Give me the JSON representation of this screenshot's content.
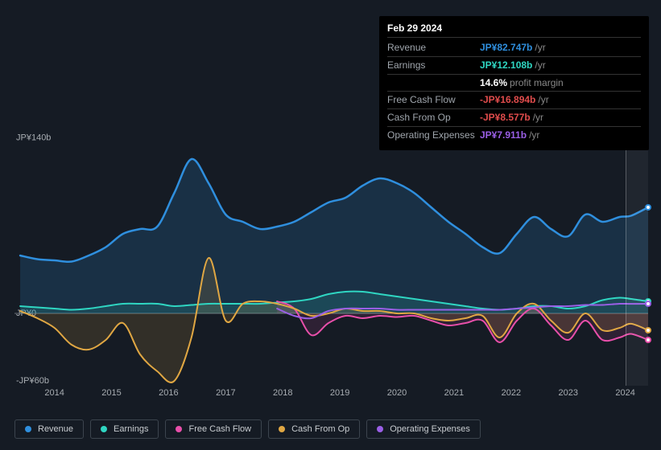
{
  "colors": {
    "revenue": "#2f8fde",
    "earnings": "#2fd6c2",
    "fcf": "#e84faa",
    "cashop": "#e0a743",
    "opex": "#9a5fe6",
    "negative": "#e04c4c",
    "bg": "#151b24",
    "grid": "#3a4149",
    "zero": "#6a7179"
  },
  "tooltip": {
    "date": "Feb 29 2024",
    "rows": [
      {
        "label": "Revenue",
        "value": "JP¥82.747b",
        "color": "#2f8fde",
        "suffix": "/yr"
      },
      {
        "label": "Earnings",
        "value": "JP¥12.108b",
        "color": "#2fd6c2",
        "suffix": "/yr"
      },
      {
        "label": "",
        "value": "14.6%",
        "color": "#ffffff",
        "suffix": "profit margin"
      },
      {
        "label": "Free Cash Flow",
        "value": "-JP¥16.894b",
        "color": "#e04c4c",
        "suffix": "/yr"
      },
      {
        "label": "Cash From Op",
        "value": "-JP¥8.577b",
        "color": "#e04c4c",
        "suffix": "/yr"
      },
      {
        "label": "Operating Expenses",
        "value": "JP¥7.911b",
        "color": "#9a5fe6",
        "suffix": "/yr"
      }
    ]
  },
  "chart": {
    "x_range": [
      2013.3,
      2024.4
    ],
    "y_range": [
      -60,
      140
    ],
    "y_ticks": [
      {
        "v": 140,
        "label": "JP¥140b"
      },
      {
        "v": 0,
        "label": "JP¥0"
      },
      {
        "v": -60,
        "label": "-JP¥60b"
      }
    ],
    "x_ticks": [
      2014,
      2015,
      2016,
      2017,
      2018,
      2019,
      2020,
      2021,
      2022,
      2023,
      2024
    ],
    "cursor_x": 2024.0,
    "series": [
      {
        "name": "Revenue",
        "color": "#2f8fde",
        "fill": "rgba(47,143,222,0.18)",
        "width": 2.5,
        "data": [
          [
            2013.4,
            48
          ],
          [
            2013.7,
            45
          ],
          [
            2014.0,
            44
          ],
          [
            2014.3,
            43
          ],
          [
            2014.6,
            48
          ],
          [
            2014.9,
            55
          ],
          [
            2015.2,
            66
          ],
          [
            2015.5,
            70
          ],
          [
            2015.8,
            72
          ],
          [
            2016.1,
            100
          ],
          [
            2016.4,
            128
          ],
          [
            2016.7,
            108
          ],
          [
            2017.0,
            82
          ],
          [
            2017.3,
            76
          ],
          [
            2017.6,
            70
          ],
          [
            2017.9,
            72
          ],
          [
            2018.2,
            76
          ],
          [
            2018.5,
            84
          ],
          [
            2018.8,
            92
          ],
          [
            2019.1,
            96
          ],
          [
            2019.4,
            106
          ],
          [
            2019.7,
            112
          ],
          [
            2020.0,
            108
          ],
          [
            2020.3,
            100
          ],
          [
            2020.6,
            88
          ],
          [
            2020.9,
            76
          ],
          [
            2021.2,
            66
          ],
          [
            2021.5,
            55
          ],
          [
            2021.8,
            50
          ],
          [
            2022.1,
            66
          ],
          [
            2022.4,
            80
          ],
          [
            2022.7,
            70
          ],
          [
            2023.0,
            64
          ],
          [
            2023.3,
            82
          ],
          [
            2023.6,
            76
          ],
          [
            2023.9,
            80
          ],
          [
            2024.1,
            81
          ],
          [
            2024.4,
            88
          ]
        ]
      },
      {
        "name": "Earnings",
        "color": "#2fd6c2",
        "fill": "rgba(47,214,194,0.15)",
        "width": 2,
        "data": [
          [
            2013.4,
            6
          ],
          [
            2013.7,
            5
          ],
          [
            2014.0,
            4
          ],
          [
            2014.3,
            3
          ],
          [
            2014.6,
            4
          ],
          [
            2014.9,
            6
          ],
          [
            2015.2,
            8
          ],
          [
            2015.5,
            8
          ],
          [
            2015.8,
            8
          ],
          [
            2016.1,
            6
          ],
          [
            2016.4,
            7
          ],
          [
            2016.7,
            8
          ],
          [
            2017.0,
            8
          ],
          [
            2017.3,
            8
          ],
          [
            2017.6,
            8
          ],
          [
            2017.9,
            9
          ],
          [
            2018.2,
            10
          ],
          [
            2018.5,
            12
          ],
          [
            2018.8,
            16
          ],
          [
            2019.1,
            18
          ],
          [
            2019.4,
            18
          ],
          [
            2019.7,
            16
          ],
          [
            2020.0,
            14
          ],
          [
            2020.3,
            12
          ],
          [
            2020.6,
            10
          ],
          [
            2020.9,
            8
          ],
          [
            2021.2,
            6
          ],
          [
            2021.5,
            4
          ],
          [
            2021.8,
            3
          ],
          [
            2022.1,
            4
          ],
          [
            2022.4,
            6
          ],
          [
            2022.7,
            6
          ],
          [
            2023.0,
            4
          ],
          [
            2023.3,
            6
          ],
          [
            2023.6,
            11
          ],
          [
            2023.9,
            13
          ],
          [
            2024.1,
            12
          ],
          [
            2024.4,
            10
          ]
        ]
      },
      {
        "name": "Free Cash Flow",
        "color": "#e84faa",
        "fill": "rgba(232,79,170,0.12)",
        "width": 2,
        "data": [
          [
            2017.9,
            10
          ],
          [
            2018.2,
            4
          ],
          [
            2018.5,
            -18
          ],
          [
            2018.8,
            -8
          ],
          [
            2019.1,
            -2
          ],
          [
            2019.4,
            -4
          ],
          [
            2019.7,
            -2
          ],
          [
            2020.0,
            -3
          ],
          [
            2020.3,
            -2
          ],
          [
            2020.6,
            -6
          ],
          [
            2020.9,
            -10
          ],
          [
            2021.2,
            -8
          ],
          [
            2021.5,
            -6
          ],
          [
            2021.8,
            -24
          ],
          [
            2022.1,
            -6
          ],
          [
            2022.4,
            4
          ],
          [
            2022.7,
            -10
          ],
          [
            2023.0,
            -22
          ],
          [
            2023.3,
            -6
          ],
          [
            2023.6,
            -22
          ],
          [
            2023.9,
            -20
          ],
          [
            2024.1,
            -17
          ],
          [
            2024.4,
            -22
          ]
        ]
      },
      {
        "name": "Cash From Op",
        "color": "#e0a743",
        "fill": "rgba(224,167,67,0.15)",
        "width": 2,
        "data": [
          [
            2013.4,
            2
          ],
          [
            2013.7,
            -4
          ],
          [
            2014.0,
            -12
          ],
          [
            2014.3,
            -26
          ],
          [
            2014.6,
            -30
          ],
          [
            2014.9,
            -22
          ],
          [
            2015.2,
            -8
          ],
          [
            2015.5,
            -34
          ],
          [
            2015.8,
            -48
          ],
          [
            2016.1,
            -56
          ],
          [
            2016.4,
            -20
          ],
          [
            2016.7,
            46
          ],
          [
            2017.0,
            -6
          ],
          [
            2017.3,
            8
          ],
          [
            2017.6,
            10
          ],
          [
            2017.9,
            8
          ],
          [
            2018.2,
            4
          ],
          [
            2018.5,
            -2
          ],
          [
            2018.8,
            0
          ],
          [
            2019.1,
            4
          ],
          [
            2019.4,
            2
          ],
          [
            2019.7,
            2
          ],
          [
            2020.0,
            0
          ],
          [
            2020.3,
            0
          ],
          [
            2020.6,
            -4
          ],
          [
            2020.9,
            -6
          ],
          [
            2021.2,
            -4
          ],
          [
            2021.5,
            -2
          ],
          [
            2021.8,
            -20
          ],
          [
            2022.1,
            0
          ],
          [
            2022.4,
            8
          ],
          [
            2022.7,
            -6
          ],
          [
            2023.0,
            -16
          ],
          [
            2023.3,
            0
          ],
          [
            2023.6,
            -14
          ],
          [
            2023.9,
            -12
          ],
          [
            2024.1,
            -8.6
          ],
          [
            2024.4,
            -14
          ]
        ]
      },
      {
        "name": "Operating Expenses",
        "color": "#9a5fe6",
        "fill": "none",
        "width": 2,
        "data": [
          [
            2017.9,
            4
          ],
          [
            2018.2,
            -2
          ],
          [
            2018.5,
            -4
          ],
          [
            2018.8,
            2
          ],
          [
            2019.1,
            4
          ],
          [
            2019.4,
            4
          ],
          [
            2019.7,
            4
          ],
          [
            2020.0,
            3
          ],
          [
            2020.3,
            3
          ],
          [
            2020.6,
            3
          ],
          [
            2020.9,
            3
          ],
          [
            2021.2,
            3
          ],
          [
            2021.5,
            3
          ],
          [
            2021.8,
            3
          ],
          [
            2022.1,
            4
          ],
          [
            2022.4,
            5
          ],
          [
            2022.7,
            6
          ],
          [
            2023.0,
            6
          ],
          [
            2023.3,
            7
          ],
          [
            2023.6,
            7
          ],
          [
            2023.9,
            8
          ],
          [
            2024.1,
            7.9
          ],
          [
            2024.4,
            8
          ]
        ]
      }
    ]
  },
  "legend": [
    {
      "label": "Revenue",
      "color": "#2f8fde"
    },
    {
      "label": "Earnings",
      "color": "#2fd6c2"
    },
    {
      "label": "Free Cash Flow",
      "color": "#e84faa"
    },
    {
      "label": "Cash From Op",
      "color": "#e0a743"
    },
    {
      "label": "Operating Expenses",
      "color": "#9a5fe6"
    }
  ]
}
